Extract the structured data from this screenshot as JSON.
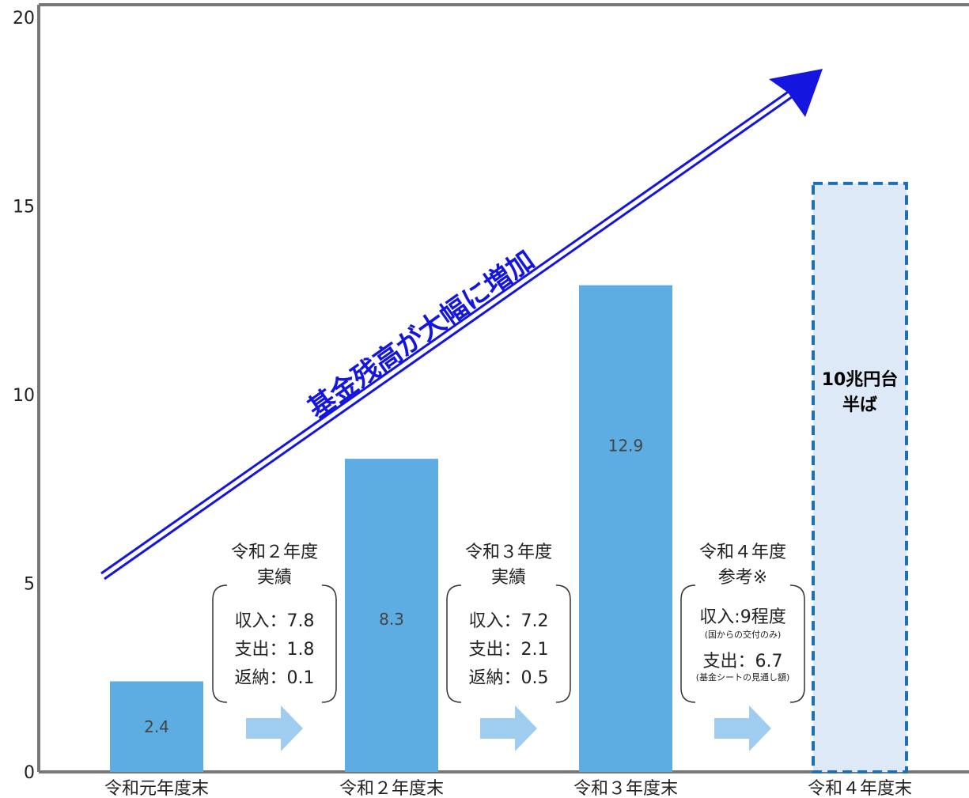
{
  "chart_data": {
    "type": "bar",
    "ylim": [
      0,
      20
    ],
    "yticks": [
      "0",
      "5",
      "10",
      "15",
      "20"
    ],
    "categories": [
      "令和元年度末",
      "令和２年度末",
      "令和３年度末",
      "令和４年度末"
    ],
    "values": [
      2.4,
      8.3,
      12.9,
      15.6
    ],
    "value_labels": [
      "2.4",
      "8.3",
      "12.9",
      ""
    ],
    "estimated_index": 3,
    "estimated_label": [
      "10兆円台",
      "半ば"
    ],
    "trend_annotation": "基金残高が大幅に増加",
    "flow_notes": [
      {
        "title": [
          "令和２年度",
          "実績"
        ],
        "lines": [
          "収入：7.8",
          "支出：1.8",
          "返納：0.1"
        ]
      },
      {
        "title": [
          "令和３年度",
          "実績"
        ],
        "lines": [
          "収入：7.2",
          "支出：2.1",
          "返納：0.5"
        ]
      },
      {
        "title": [
          "令和４年度",
          "参考※"
        ],
        "lines": [
          "収入:9程度",
          "(国からの交付のみ)",
          "支出：6.7",
          "(基金シートの見通し額)"
        ]
      }
    ],
    "colors": {
      "bar": "#5dade2",
      "estimated_fill": "#dde9f6",
      "estimated_border": "#1f6fb8",
      "trend": "#1515e0",
      "flow_arrow": "#9fcdf0",
      "axis": "#777777"
    },
    "grid": false
  }
}
